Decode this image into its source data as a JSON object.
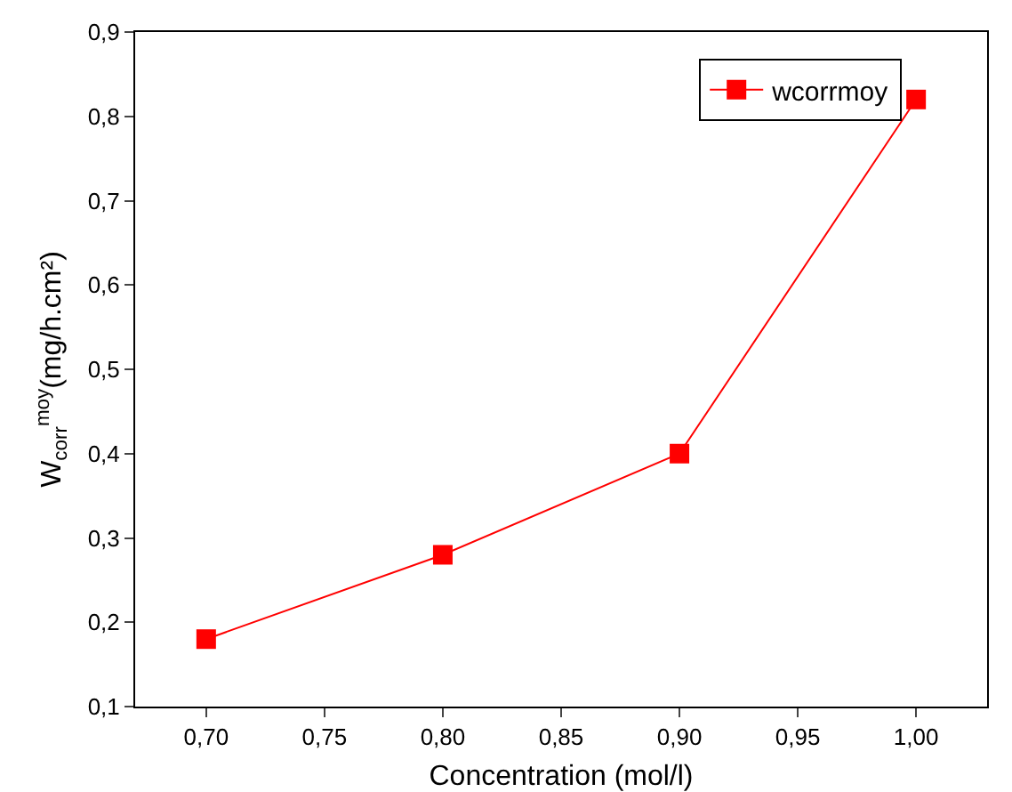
{
  "chart_data": {
    "type": "line",
    "xlabel": "Concentration (mol/l)",
    "ylabel": "W$_{corr}$$^{moy}$(mg/h.cm²)",
    "x": [
      0.7,
      0.8,
      0.9,
      1.0
    ],
    "series": [
      {
        "name": "wcorrmoy",
        "color": "#ff0000",
        "values": [
          0.18,
          0.28,
          0.4,
          0.82
        ]
      }
    ],
    "xlim": [
      0.67,
      1.03
    ],
    "xticks": [
      {
        "value": 0.7,
        "label": "0,70"
      },
      {
        "value": 0.75,
        "label": "0,75"
      },
      {
        "value": 0.8,
        "label": "0,80"
      },
      {
        "value": 0.85,
        "label": "0,85"
      },
      {
        "value": 0.9,
        "label": "0,90"
      },
      {
        "value": 0.95,
        "label": "0,95"
      },
      {
        "value": 1.0,
        "label": "1,00"
      }
    ],
    "ylim": [
      0.1,
      0.9
    ],
    "yticks": [
      {
        "value": 0.1,
        "label": "0,1"
      },
      {
        "value": 0.2,
        "label": "0,2"
      },
      {
        "value": 0.3,
        "label": "0,3"
      },
      {
        "value": 0.4,
        "label": "0,4"
      },
      {
        "value": 0.5,
        "label": "0,5"
      },
      {
        "value": 0.6,
        "label": "0,6"
      },
      {
        "value": 0.7,
        "label": "0,7"
      },
      {
        "value": 0.8,
        "label": "0,8"
      },
      {
        "value": 0.9,
        "label": "0,9"
      }
    ],
    "grid": false,
    "legend": "top right",
    "marker": "square",
    "line_style": "solid"
  }
}
